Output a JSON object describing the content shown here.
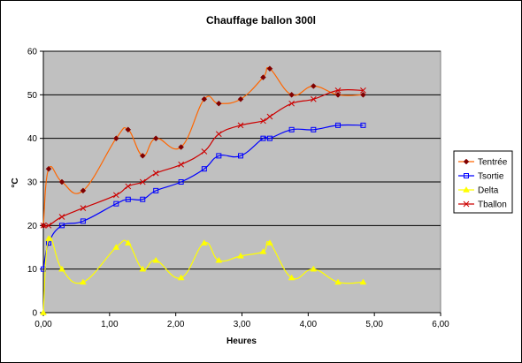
{
  "chart_data": {
    "type": "line",
    "title": "Chauffage ballon 300l",
    "xlabel": "Heures",
    "ylabel": "°C",
    "xlim": [
      0,
      6
    ],
    "ylim": [
      0,
      60
    ],
    "x_ticks": [
      0,
      1,
      2,
      3,
      4,
      5,
      6
    ],
    "x_tick_labels": [
      "0,00",
      "1,00",
      "2,00",
      "3,00",
      "4,00",
      "5,00",
      "6,00"
    ],
    "y_ticks": [
      0,
      10,
      20,
      30,
      40,
      50,
      60
    ],
    "y_tick_labels": [
      "0",
      "10",
      "20",
      "30",
      "40",
      "50",
      "60"
    ],
    "grid": "horizontal",
    "legend_position": "right",
    "plot_background": "#c0c0c0",
    "series": [
      {
        "name": "Tentrée",
        "color": "#ff6600",
        "marker": "diamond",
        "x": [
          0.0,
          0.08,
          0.28,
          0.6,
          1.1,
          1.28,
          1.5,
          1.7,
          2.08,
          2.43,
          2.65,
          2.98,
          3.32,
          3.42,
          3.75,
          4.08,
          4.45,
          4.83
        ],
        "y": [
          20,
          33,
          30,
          28,
          40,
          42,
          36,
          40,
          38,
          49,
          48,
          49,
          54,
          56,
          50,
          52,
          50,
          50
        ]
      },
      {
        "name": "Tsortie",
        "color": "#0000ff",
        "marker": "square",
        "x": [
          0.0,
          0.08,
          0.28,
          0.6,
          1.1,
          1.28,
          1.5,
          1.7,
          2.08,
          2.43,
          2.65,
          2.98,
          3.32,
          3.42,
          3.75,
          4.08,
          4.45,
          4.83
        ],
        "y": [
          10,
          16,
          20,
          21,
          25,
          26,
          26,
          28,
          30,
          33,
          36,
          36,
          40,
          40,
          42,
          42,
          43,
          43
        ]
      },
      {
        "name": "Delta",
        "color": "#ffff00",
        "marker": "triangle",
        "x": [
          0.0,
          0.08,
          0.28,
          0.6,
          1.1,
          1.28,
          1.5,
          1.7,
          2.08,
          2.43,
          2.65,
          2.98,
          3.32,
          3.42,
          3.75,
          4.08,
          4.45,
          4.83
        ],
        "y": [
          0,
          17,
          10,
          7,
          15,
          16,
          10,
          12,
          8,
          16,
          12,
          13,
          14,
          16,
          8,
          10,
          7,
          7
        ]
      },
      {
        "name": "Tballon",
        "color": "#cc0000",
        "marker": "star",
        "x": [
          0.0,
          0.08,
          0.28,
          0.6,
          1.1,
          1.28,
          1.5,
          1.7,
          2.08,
          2.43,
          2.65,
          2.98,
          3.32,
          3.42,
          3.75,
          4.08,
          4.45,
          4.83
        ],
        "y": [
          20,
          20,
          22,
          24,
          27,
          29,
          30,
          32,
          34,
          37,
          41,
          43,
          44,
          45,
          48,
          49,
          51,
          51
        ]
      }
    ]
  }
}
